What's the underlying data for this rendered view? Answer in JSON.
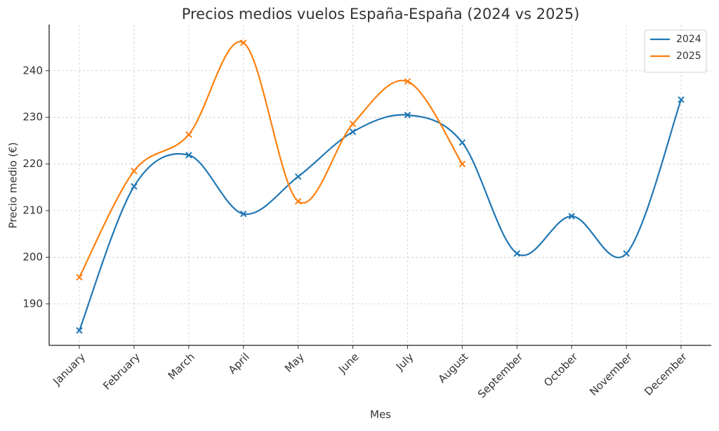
{
  "chart_data": {
    "type": "line",
    "title": "Precios medios vuelos España-España (2024 vs 2025)",
    "x_label": "Mes",
    "y_label": "Precio medio (€)",
    "categories": [
      "January",
      "February",
      "March",
      "April",
      "May",
      "June",
      "July",
      "August",
      "September",
      "October",
      "November",
      "December"
    ],
    "series": [
      {
        "name": "2024",
        "color": "#1f77b4",
        "values": [
          184.3,
          215.2,
          221.9,
          209.3,
          217.3,
          226.9,
          230.5,
          224.6,
          200.8,
          208.8,
          200.8,
          233.8
        ]
      },
      {
        "name": "2025",
        "color": "#ff7f0e",
        "values": [
          195.7,
          218.5,
          226.3,
          246.0,
          212.0,
          228.6,
          237.7,
          220.0,
          null,
          null,
          null,
          null
        ]
      }
    ],
    "ylim": [
      181.1,
      249.9
    ],
    "yticks": [
      190,
      200,
      210,
      220,
      230,
      240
    ],
    "grid": true,
    "legend": "upper right",
    "smooth": true,
    "marker": "x"
  }
}
